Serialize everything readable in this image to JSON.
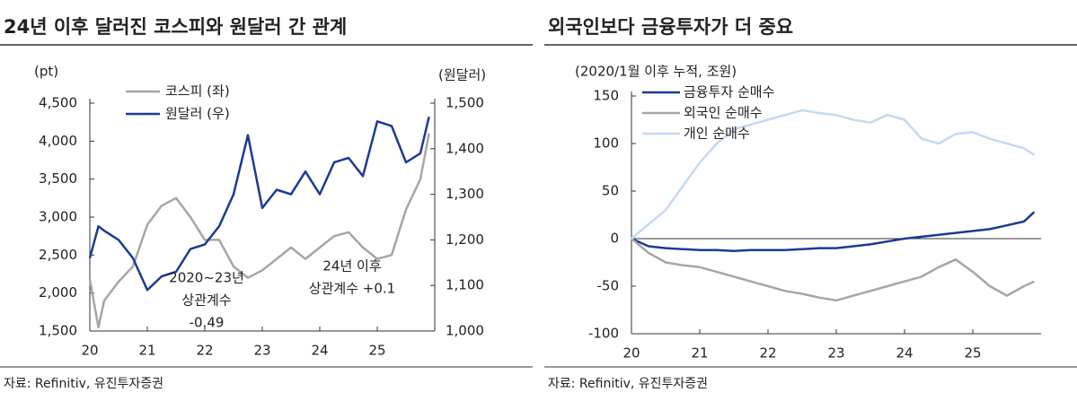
{
  "chart_data": [
    {
      "type": "line",
      "title": "24년 이후 달러진 코스피와 원달러 간 관계",
      "ylabel": "(pt)",
      "y2label": "(원달러)",
      "source": "자료: Refinitiv, 유진투자증권",
      "legend": "upper left",
      "x": [
        2020,
        2020.15,
        2020.25,
        2020.5,
        2020.75,
        2021,
        2021.25,
        2021.5,
        2021.75,
        2022,
        2022.25,
        2022.5,
        2022.75,
        2023,
        2023.25,
        2023.5,
        2023.75,
        2024,
        2024.25,
        2024.5,
        2024.75,
        2025,
        2025.25,
        2025.5,
        2025.75,
        2025.9
      ],
      "xlim": [
        2020,
        2026
      ],
      "xticks": [
        {
          "value": 2020,
          "label": "20"
        },
        {
          "value": 2021,
          "label": "21"
        },
        {
          "value": 2022,
          "label": "22"
        },
        {
          "value": 2023,
          "label": "23"
        },
        {
          "value": 2024,
          "label": "24"
        },
        {
          "value": 2025,
          "label": "25"
        }
      ],
      "ylim": [
        1500,
        4500
      ],
      "yticks": [
        {
          "value": 1500,
          "label": "1,500"
        },
        {
          "value": 2000,
          "label": "2,000"
        },
        {
          "value": 2500,
          "label": "2,500"
        },
        {
          "value": 3000,
          "label": "3,000"
        },
        {
          "value": 3500,
          "label": "3,500"
        },
        {
          "value": 4000,
          "label": "4,000"
        },
        {
          "value": 4500,
          "label": "4,500"
        }
      ],
      "y2lim": [
        1000,
        1500
      ],
      "y2ticks": [
        {
          "value": 1000,
          "label": "1,000"
        },
        {
          "value": 1100,
          "label": "1,100"
        },
        {
          "value": 1200,
          "label": "1,200"
        },
        {
          "value": 1300,
          "label": "1,300"
        },
        {
          "value": 1400,
          "label": "1,400"
        },
        {
          "value": 1500,
          "label": "1,500"
        }
      ],
      "series": [
        {
          "name": "코스피 (좌)",
          "color": "#a6a6a6",
          "values": [
            2180,
            1550,
            1900,
            2150,
            2350,
            2900,
            3150,
            3250,
            3000,
            2700,
            2700,
            2350,
            2200,
            2300,
            2450,
            2600,
            2450,
            2600,
            2750,
            2800,
            2600,
            2450,
            2500,
            3100,
            3500,
            4100
          ]
        },
        {
          "name": "원달러 (우)",
          "color": "#1f3a93",
          "axis": "y2",
          "values": [
            1160,
            1230,
            1220,
            1200,
            1160,
            1090,
            1120,
            1130,
            1180,
            1190,
            1230,
            1300,
            1430,
            1270,
            1310,
            1300,
            1350,
            1300,
            1370,
            1380,
            1340,
            1460,
            1450,
            1370,
            1390,
            1470
          ]
        }
      ],
      "annotations": [
        [
          "2020~23년",
          "상관계수",
          "-0.49"
        ],
        [
          "24년 이후",
          "상관계수 +0.1"
        ]
      ]
    },
    {
      "type": "line",
      "title": "외국인보다 금융투자가 더 중요",
      "ylabel": "(2020/1월 이후 누적, 조원)",
      "source": "자료: Refinitiv, 유진투자증권",
      "legend": "upper left",
      "x": [
        2020,
        2020.25,
        2020.5,
        2020.75,
        2021,
        2021.25,
        2021.5,
        2021.75,
        2022,
        2022.25,
        2022.5,
        2022.75,
        2023,
        2023.25,
        2023.5,
        2023.75,
        2024,
        2024.25,
        2024.5,
        2024.75,
        2025,
        2025.25,
        2025.5,
        2025.75,
        2025.9
      ],
      "xlim": [
        2020,
        2026
      ],
      "xticks": [
        {
          "value": 2020,
          "label": "20"
        },
        {
          "value": 2021,
          "label": "21"
        },
        {
          "value": 2022,
          "label": "22"
        },
        {
          "value": 2023,
          "label": "23"
        },
        {
          "value": 2024,
          "label": "24"
        },
        {
          "value": 2025,
          "label": "25"
        }
      ],
      "ylim": [
        -100,
        150
      ],
      "yticks": [
        -100,
        -50,
        0,
        50,
        100,
        150
      ],
      "series": [
        {
          "name": "금융투자 순매수",
          "color": "#1f3a93",
          "values": [
            0,
            -8,
            -10,
            -11,
            -12,
            -12,
            -13,
            -12,
            -12,
            -12,
            -11,
            -10,
            -10,
            -8,
            -6,
            -3,
            0,
            2,
            4,
            6,
            8,
            10,
            14,
            18,
            28
          ]
        },
        {
          "name": "외국인 순매수",
          "color": "#a6a6a6",
          "values": [
            0,
            -15,
            -25,
            -28,
            -30,
            -35,
            -40,
            -45,
            -50,
            -55,
            -58,
            -62,
            -65,
            -60,
            -55,
            -50,
            -45,
            -40,
            -30,
            -22,
            -35,
            -50,
            -60,
            -50,
            -45
          ]
        },
        {
          "name": "개인 순매수",
          "color": "#c5d9f1",
          "values": [
            0,
            15,
            30,
            55,
            80,
            100,
            115,
            120,
            125,
            130,
            135,
            132,
            130,
            125,
            122,
            130,
            125,
            105,
            100,
            110,
            112,
            105,
            100,
            95,
            88
          ]
        }
      ]
    }
  ]
}
